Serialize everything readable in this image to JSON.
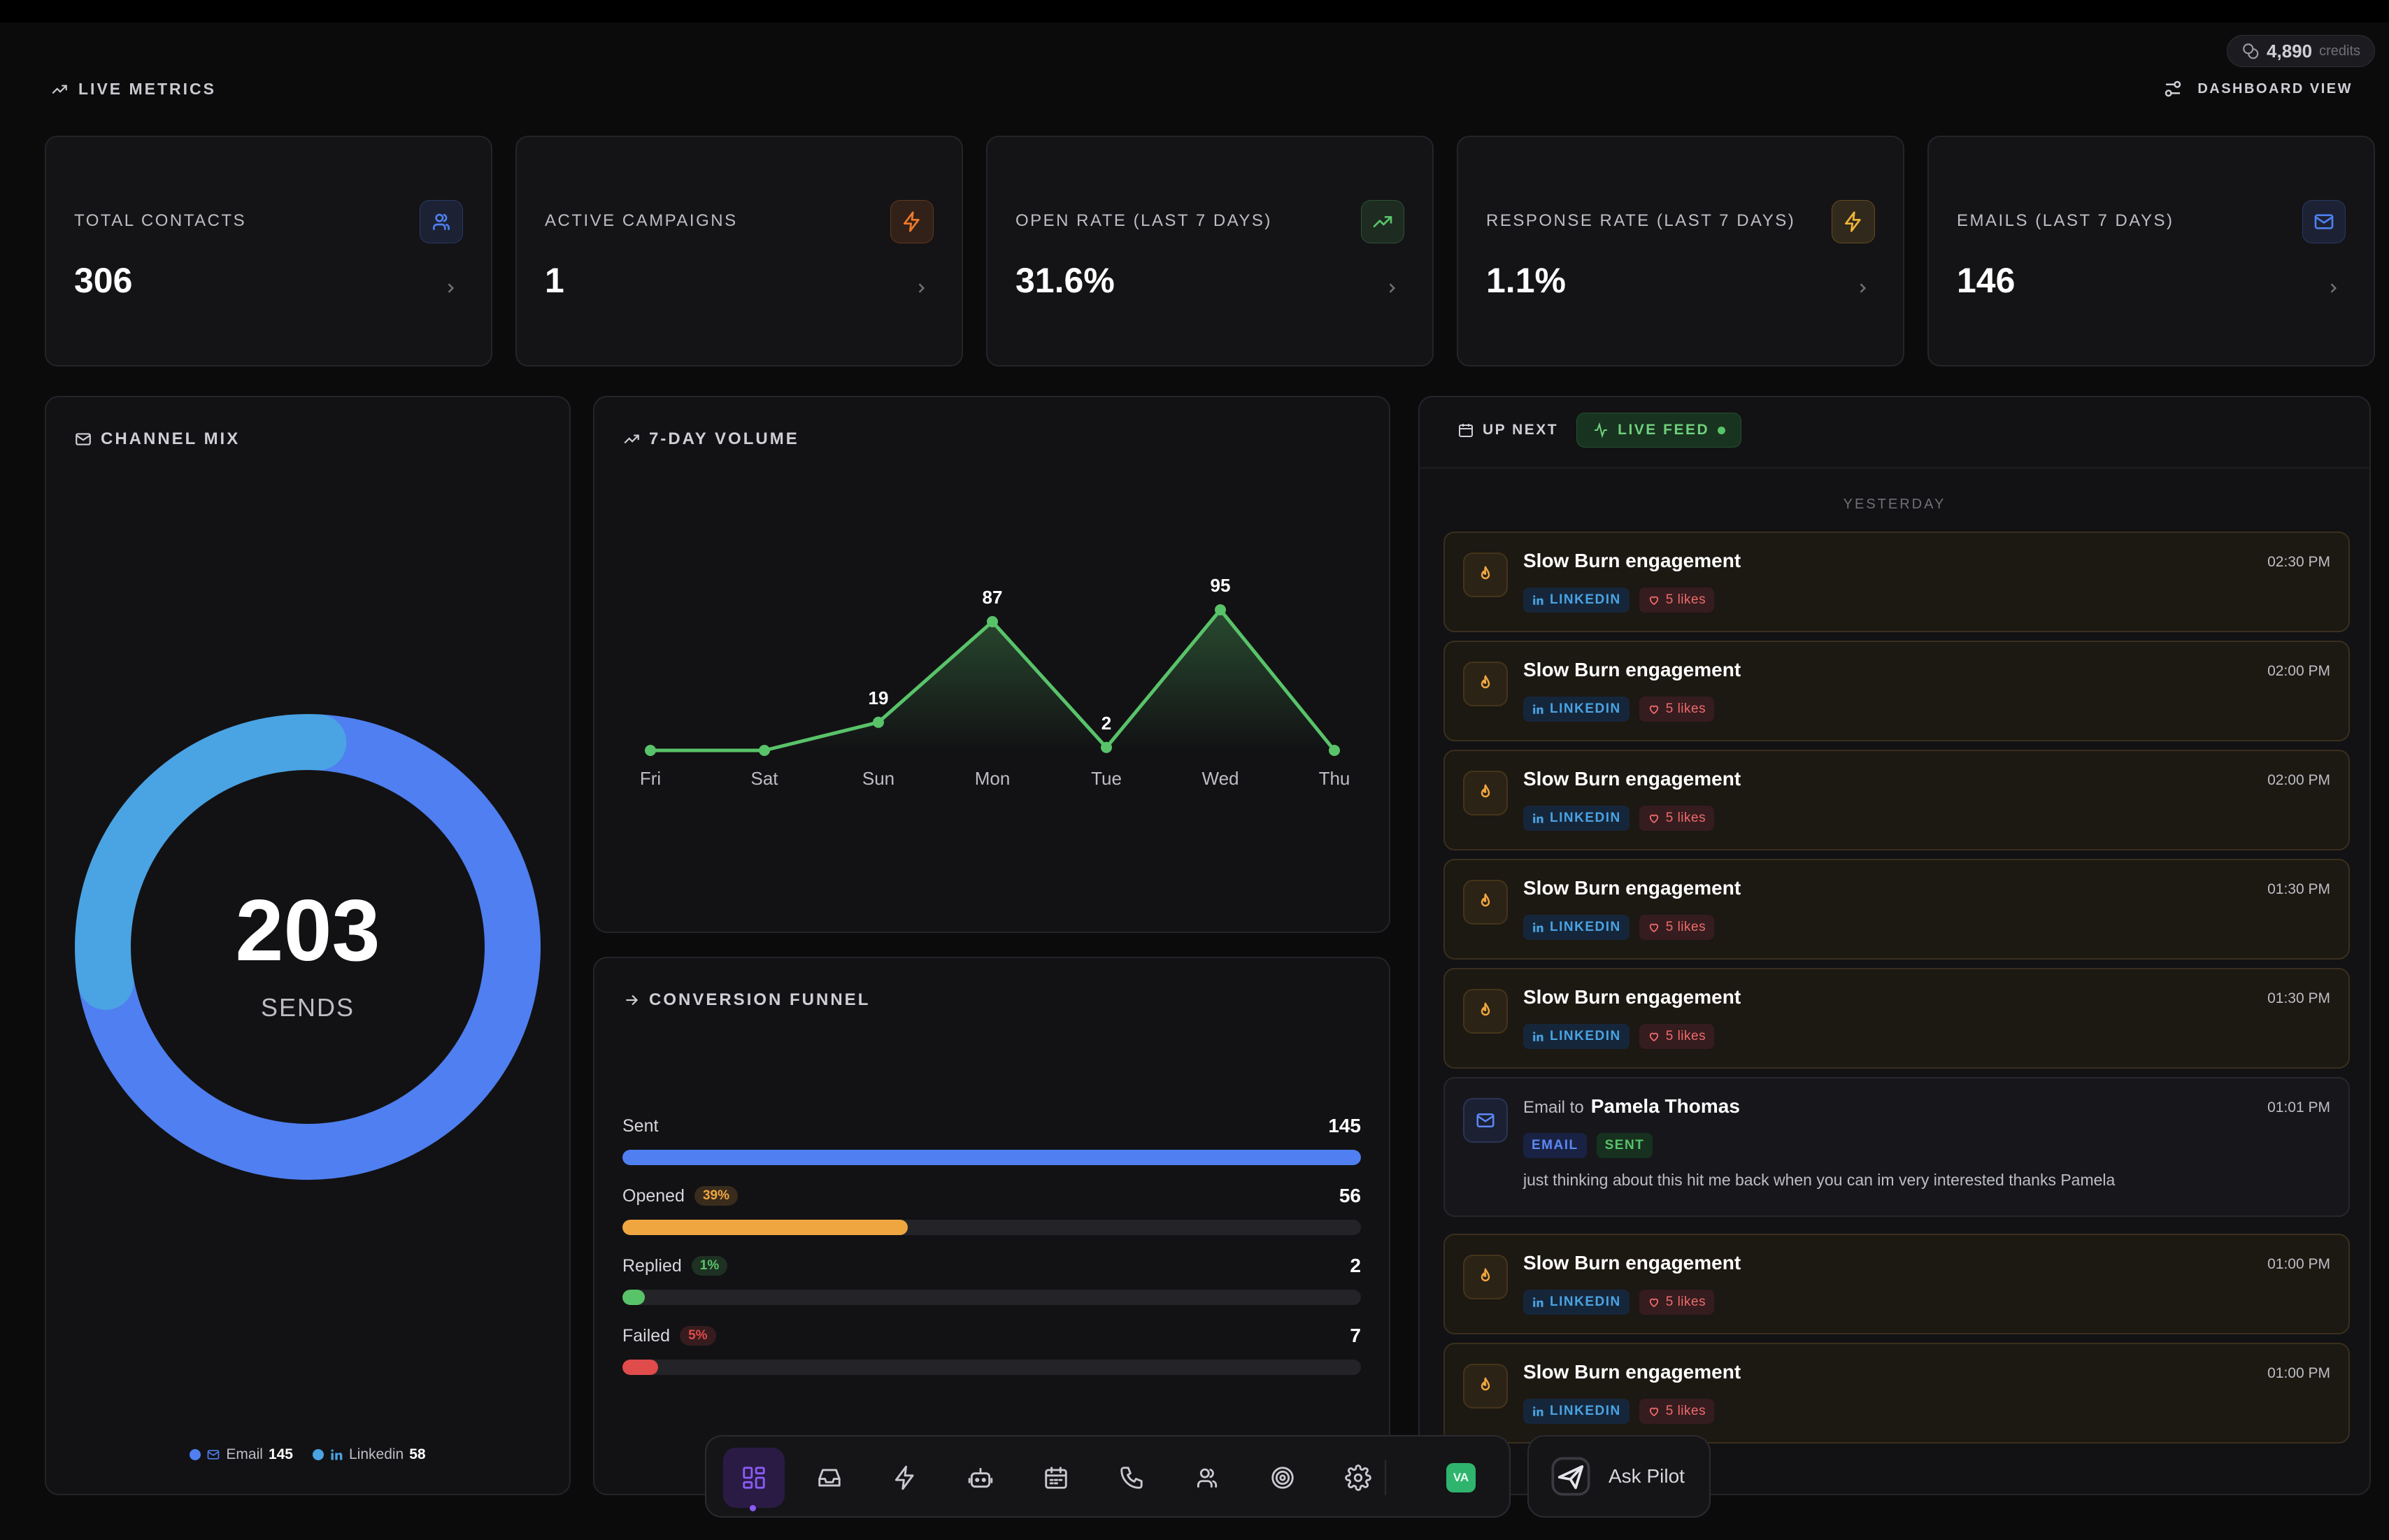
{
  "credits": {
    "value": "4,890",
    "label": "credits"
  },
  "header": {
    "section_title": "LIVE METRICS",
    "view_toggle": "DASHBOARD VIEW"
  },
  "stats": [
    {
      "label": "TOTAL CONTACTS",
      "value": "306",
      "icon": "users-icon",
      "color": "#4f7ff0"
    },
    {
      "label": "ACTIVE CAMPAIGNS",
      "value": "1",
      "icon": "bolt-icon",
      "color": "#f07a2a"
    },
    {
      "label": "OPEN RATE (LAST 7 DAYS)",
      "value": "31.6%",
      "icon": "trend-up-icon",
      "color": "#59c36a"
    },
    {
      "label": "RESPONSE RATE (LAST 7 DAYS)",
      "value": "1.1%",
      "icon": "bolt-icon",
      "color": "#f0b43a"
    },
    {
      "label": "EMAILS (LAST 7 DAYS)",
      "value": "146",
      "icon": "mail-icon",
      "color": "#4f7ff0"
    }
  ],
  "channel_mix": {
    "title": "CHANNEL MIX",
    "total": "203",
    "total_label": "SENDS",
    "segments": [
      {
        "name": "Email",
        "value": 145,
        "color": "#4f7ff0"
      },
      {
        "name": "Linkedin",
        "value": 58,
        "color": "#4aa3e3"
      }
    ]
  },
  "volume": {
    "title": "7-DAY VOLUME"
  },
  "funnel": {
    "title": "CONVERSION FUNNEL",
    "rows": [
      {
        "name": "Sent",
        "pct": "",
        "value": "145",
        "fraction": 1.0,
        "color": "#4f7ff0"
      },
      {
        "name": "Opened",
        "pct": "39%",
        "value": "56",
        "fraction": 0.386,
        "color": "#f0a640"
      },
      {
        "name": "Replied",
        "pct": "1%",
        "value": "2",
        "fraction": 0.014,
        "color": "#59c36a"
      },
      {
        "name": "Failed",
        "pct": "5%",
        "value": "7",
        "fraction": 0.048,
        "color": "#e04b4b"
      }
    ]
  },
  "chart_data": {
    "type": "line",
    "title": "7-DAY VOLUME",
    "categories": [
      "Fri",
      "Sat",
      "Sun",
      "Mon",
      "Tue",
      "Wed",
      "Thu"
    ],
    "values": [
      0,
      0,
      19,
      87,
      2,
      95,
      0
    ],
    "data_labels": [
      "",
      "",
      "19",
      "87",
      "2",
      "95",
      ""
    ],
    "ylim": [
      0,
      95
    ],
    "grid": false,
    "color": "#59c36a"
  },
  "feed": {
    "tab_up_next": "UP NEXT",
    "tab_live": "LIVE FEED",
    "day": "YESTERDAY",
    "items": [
      {
        "kind": "engagement",
        "title": "Slow Burn engagement",
        "time": "02:30 PM",
        "channel": "LINKEDIN",
        "likes": "5 likes"
      },
      {
        "kind": "engagement",
        "title": "Slow Burn engagement",
        "time": "02:00 PM",
        "channel": "LINKEDIN",
        "likes": "5 likes"
      },
      {
        "kind": "engagement",
        "title": "Slow Burn engagement",
        "time": "02:00 PM",
        "channel": "LINKEDIN",
        "likes": "5 likes"
      },
      {
        "kind": "engagement",
        "title": "Slow Burn engagement",
        "time": "01:30 PM",
        "channel": "LINKEDIN",
        "likes": "5 likes"
      },
      {
        "kind": "engagement",
        "title": "Slow Burn engagement",
        "time": "01:30 PM",
        "channel": "LINKEDIN",
        "likes": "5 likes"
      },
      {
        "kind": "email",
        "prefix": "Email to",
        "title": "Pamela Thomas",
        "time": "01:01 PM",
        "channel": "EMAIL",
        "status": "SENT",
        "message": "just thinking about this hit me back when you can im very interested thanks Pamela"
      },
      {
        "kind": "engagement",
        "title": "Slow Burn engagement",
        "time": "01:00 PM",
        "channel": "LINKEDIN",
        "likes": "5 likes"
      },
      {
        "kind": "engagement",
        "title": "Slow Burn engagement",
        "time": "01:00 PM",
        "channel": "LINKEDIN",
        "likes": "5 likes"
      }
    ]
  },
  "nav": {
    "items": [
      "dashboard-icon",
      "inbox-icon",
      "bolt-icon",
      "bot-icon",
      "calendar-icon",
      "phone-icon",
      "users-icon",
      "target-icon",
      "gear-icon"
    ],
    "avatar_initials": "VA",
    "ask_label": "Ask Pilot"
  }
}
